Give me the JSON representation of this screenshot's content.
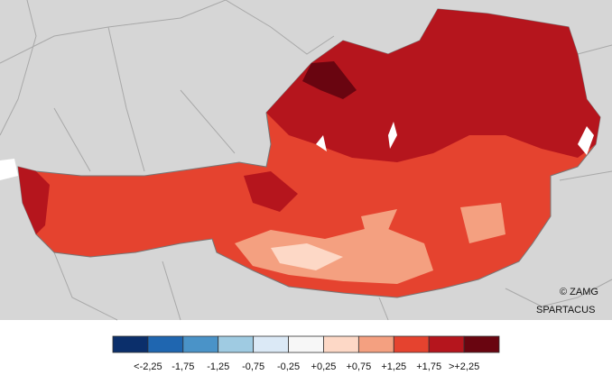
{
  "credits": {
    "copyright": "© ZAMG",
    "source": "SPARTACUS"
  },
  "legend": {
    "colors": [
      "#0b2f6b",
      "#1f66b0",
      "#4a93c8",
      "#9fcbe2",
      "#dbe9f6",
      "#f7f7f7",
      "#fdd8c6",
      "#f4a080",
      "#e5432f",
      "#b5151d",
      "#690510"
    ],
    "labels": [
      "<-2,25",
      "-1,75",
      "-1,25",
      "-0,75",
      "-0,25",
      "+0,25",
      "+0,75",
      "+1,25",
      "+1,75",
      ">+2,25"
    ]
  }
}
